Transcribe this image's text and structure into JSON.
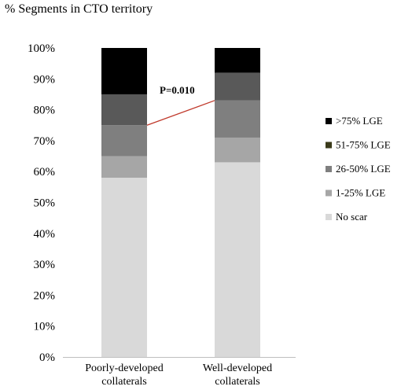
{
  "chart_data": {
    "type": "bar",
    "stacked": true,
    "ylabel": "% Segments in CTO territory",
    "xlabel": "",
    "ylim": [
      0,
      100
    ],
    "yticks": [
      "0%",
      "10%",
      "20%",
      "30%",
      "40%",
      "50%",
      "60%",
      "70%",
      "80%",
      "90%",
      "100%"
    ],
    "categories": [
      [
        "Poorly-developed",
        "collaterals"
      ],
      [
        "Well-developed",
        "collaterals"
      ]
    ],
    "series": [
      {
        "name": "No scar",
        "color": "#d9d9d9",
        "values": [
          58,
          63
        ]
      },
      {
        "name": "1-25% LGE",
        "color": "#a6a6a6",
        "values": [
          7,
          8
        ]
      },
      {
        "name": "26-50% LGE",
        "color": "#7f7f7f",
        "values": [
          10,
          12
        ]
      },
      {
        "name": "51-75% LGE",
        "color": "#595959",
        "values": [
          10,
          9
        ]
      },
      {
        "name": ">75% LGE",
        "color": "#000000",
        "values": [
          15,
          8
        ]
      }
    ],
    "legend": {
      "position": "right",
      "entries": [
        {
          "label": ">75% LGE",
          "color": "#000000"
        },
        {
          "label": "51-75% LGE",
          "color": "#3a3a1a"
        },
        {
          "label": "26-50% LGE",
          "color": "#7f7f7f"
        },
        {
          "label": "1-25% LGE",
          "color": "#a6a6a6"
        },
        {
          "label": "No scar",
          "color": "#d9d9d9"
        }
      ]
    },
    "annotations": [
      {
        "text": "P=0.010",
        "line_from_value": 75,
        "line_to_value": 83,
        "line_color": "#c0392b"
      }
    ],
    "grid": false
  }
}
